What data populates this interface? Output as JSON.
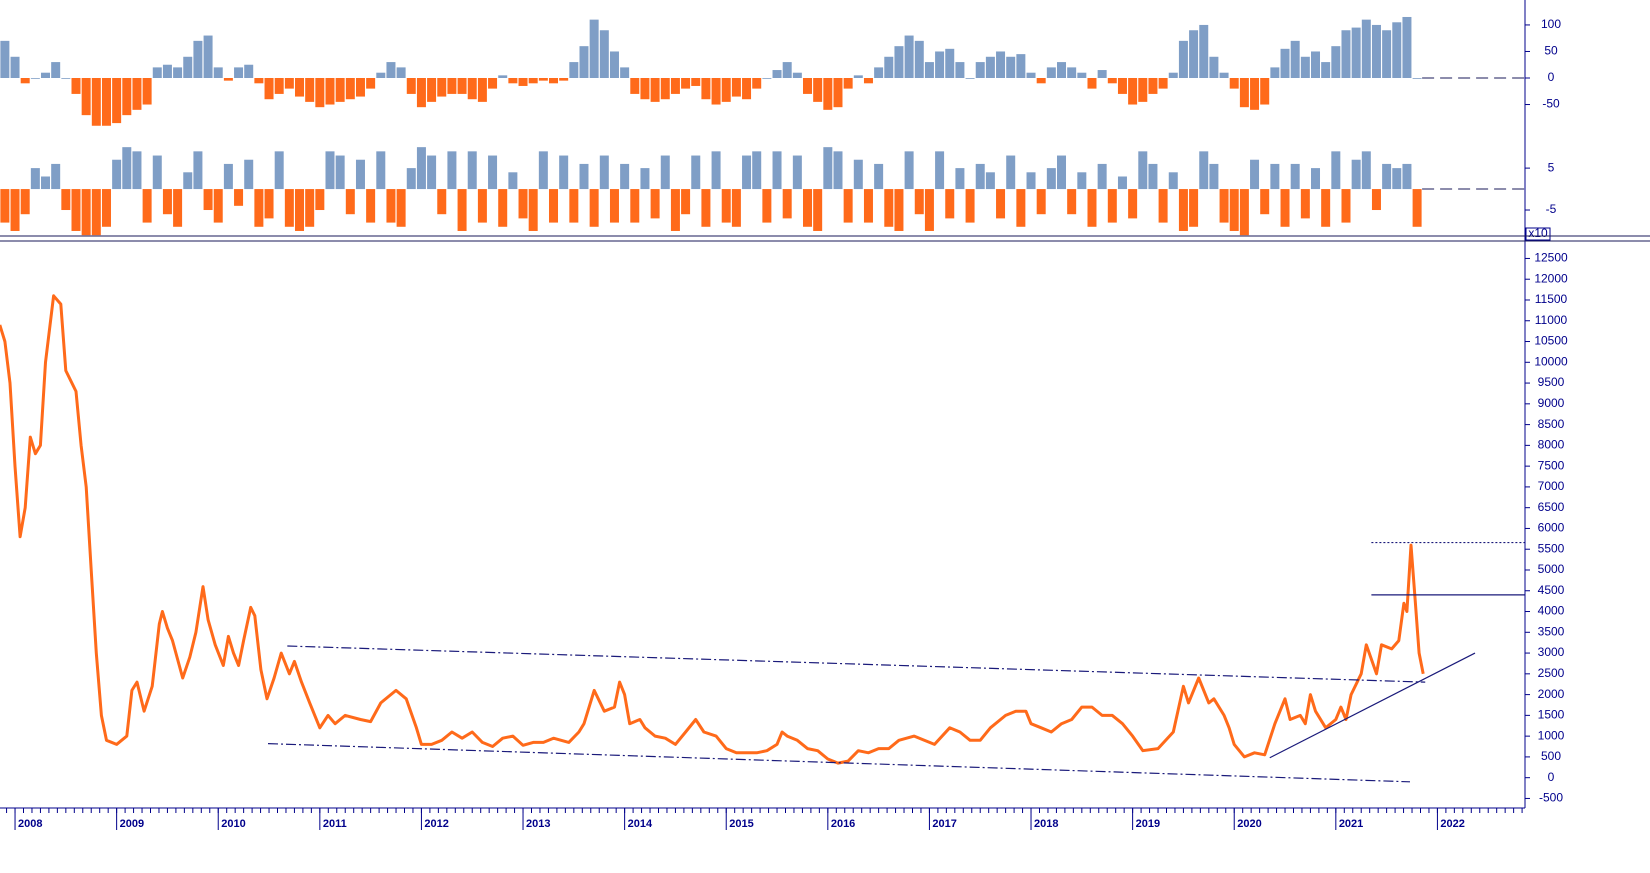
{
  "chart_data": [
    {
      "type": "bar",
      "x": [
        2007.9,
        2008,
        2008.1,
        2008.2,
        2008.3,
        2008.4,
        2008.5,
        2008.6,
        2008.7,
        2008.8,
        2008.9,
        2009,
        2009.1,
        2009.2,
        2009.3,
        2009.4,
        2009.5,
        2009.6,
        2009.7,
        2009.8,
        2009.9,
        2010,
        2010.1,
        2010.2,
        2010.3,
        2010.4,
        2010.5,
        2010.6,
        2010.7,
        2010.8,
        2010.9,
        2011,
        2011.1,
        2011.2,
        2011.3,
        2011.4,
        2011.5,
        2011.6,
        2011.7,
        2011.8,
        2011.9,
        2012,
        2012.1,
        2012.2,
        2012.3,
        2012.4,
        2012.5,
        2012.6,
        2012.7,
        2012.8,
        2012.9,
        2013,
        2013.1,
        2013.2,
        2013.3,
        2013.4,
        2013.5,
        2013.6,
        2013.7,
        2013.8,
        2013.9,
        2014,
        2014.1,
        2014.2,
        2014.3,
        2014.4,
        2014.5,
        2014.6,
        2014.7,
        2014.8,
        2014.9,
        2015,
        2015.1,
        2015.2,
        2015.3,
        2015.4,
        2015.5,
        2015.6,
        2015.7,
        2015.8,
        2015.9,
        2016,
        2016.1,
        2016.2,
        2016.3,
        2016.4,
        2016.5,
        2016.6,
        2016.7,
        2016.8,
        2016.9,
        2017,
        2017.1,
        2017.2,
        2017.3,
        2017.4,
        2017.5,
        2017.6,
        2017.7,
        2017.8,
        2017.9,
        2018,
        2018.1,
        2018.2,
        2018.3,
        2018.4,
        2018.5,
        2018.6,
        2018.7,
        2018.8,
        2018.9,
        2019,
        2019.1,
        2019.2,
        2019.3,
        2019.4,
        2019.5,
        2019.6,
        2019.7,
        2019.8,
        2019.9,
        2020,
        2020.1,
        2020.2,
        2020.3,
        2020.4,
        2020.5,
        2020.6,
        2020.7,
        2020.8,
        2020.9,
        2021,
        2021.1,
        2021.2,
        2021.3,
        2021.4,
        2021.5,
        2021.6,
        2021.7,
        2021.8
      ],
      "values": [
        70,
        40,
        -10,
        0,
        10,
        30,
        0,
        -30,
        -70,
        -90,
        -90,
        -85,
        -70,
        -60,
        -50,
        20,
        25,
        20,
        40,
        70,
        80,
        20,
        -5,
        20,
        25,
        -10,
        -40,
        -30,
        -20,
        -35,
        -45,
        -55,
        -50,
        -45,
        -40,
        -35,
        -20,
        10,
        30,
        20,
        -30,
        -55,
        -45,
        -35,
        -30,
        -30,
        -40,
        -45,
        -20,
        5,
        -10,
        -15,
        -10,
        -5,
        -10,
        -5,
        30,
        60,
        110,
        90,
        50,
        20,
        -30,
        -40,
        -45,
        -40,
        -30,
        -20,
        -15,
        -40,
        -50,
        -45,
        -35,
        -40,
        -20,
        0,
        15,
        30,
        10,
        -30,
        -45,
        -60,
        -55,
        -20,
        5,
        -10,
        20,
        40,
        60,
        80,
        70,
        30,
        50,
        55,
        30,
        0,
        30,
        40,
        50,
        40,
        45,
        10,
        -10,
        20,
        30,
        20,
        10,
        -20,
        15,
        -10,
        -30,
        -50,
        -45,
        -30,
        -20,
        10,
        70,
        90,
        100,
        40,
        10,
        -20,
        -55,
        -60,
        -50,
        20,
        55,
        70,
        40,
        50,
        30,
        60,
        90,
        95,
        110,
        100,
        90,
        105,
        115,
        0
      ],
      "positive_color": "#7f9ec6",
      "negative_color": "#ff6a1a",
      "xlim": [
        2007.852,
        2022.862
      ],
      "ylim": [
        -98,
        147
      ],
      "yticks": [
        100,
        50,
        0,
        -50
      ]
    },
    {
      "type": "bar",
      "x": [
        2007.9,
        2008,
        2008.1,
        2008.2,
        2008.3,
        2008.4,
        2008.5,
        2008.6,
        2008.7,
        2008.8,
        2008.9,
        2009,
        2009.1,
        2009.2,
        2009.3,
        2009.4,
        2009.5,
        2009.6,
        2009.7,
        2009.8,
        2009.9,
        2010,
        2010.1,
        2010.2,
        2010.3,
        2010.4,
        2010.5,
        2010.6,
        2010.7,
        2010.8,
        2010.9,
        2011,
        2011.1,
        2011.2,
        2011.3,
        2011.4,
        2011.5,
        2011.6,
        2011.7,
        2011.8,
        2011.9,
        2012,
        2012.1,
        2012.2,
        2012.3,
        2012.4,
        2012.5,
        2012.6,
        2012.7,
        2012.8,
        2012.9,
        2013,
        2013.1,
        2013.2,
        2013.3,
        2013.4,
        2013.5,
        2013.6,
        2013.7,
        2013.8,
        2013.9,
        2014,
        2014.1,
        2014.2,
        2014.3,
        2014.4,
        2014.5,
        2014.6,
        2014.7,
        2014.8,
        2014.9,
        2015,
        2015.1,
        2015.2,
        2015.3,
        2015.4,
        2015.5,
        2015.6,
        2015.7,
        2015.8,
        2015.9,
        2016,
        2016.1,
        2016.2,
        2016.3,
        2016.4,
        2016.5,
        2016.6,
        2016.7,
        2016.8,
        2016.9,
        2017,
        2017.1,
        2017.2,
        2017.3,
        2017.4,
        2017.5,
        2017.6,
        2017.7,
        2017.8,
        2017.9,
        2018,
        2018.1,
        2018.2,
        2018.3,
        2018.4,
        2018.5,
        2018.6,
        2018.7,
        2018.8,
        2018.9,
        2019,
        2019.1,
        2019.2,
        2019.3,
        2019.4,
        2019.5,
        2019.6,
        2019.7,
        2019.8,
        2019.9,
        2020,
        2020.1,
        2020.2,
        2020.3,
        2020.4,
        2020.5,
        2020.6,
        2020.7,
        2020.8,
        2020.9,
        2021,
        2021.1,
        2021.2,
        2021.3,
        2021.4,
        2021.5,
        2021.6,
        2021.7,
        2021.8
      ],
      "values": [
        -8,
        -10,
        -6,
        5,
        3,
        6,
        -5,
        -10,
        -11,
        -11,
        -9,
        7,
        10,
        9,
        -8,
        8,
        -6,
        -9,
        4,
        9,
        -5,
        -8,
        6,
        -4,
        7,
        -9,
        -7,
        9,
        -9,
        -10,
        -9,
        -5,
        9,
        8,
        -6,
        7,
        -8,
        9,
        -8,
        -9,
        5,
        10,
        8,
        -6,
        9,
        -10,
        9,
        -8,
        8,
        -9,
        4,
        -7,
        -10,
        9,
        -8,
        8,
        -8,
        6,
        -9,
        8,
        -8,
        6,
        -8,
        5,
        -7,
        8,
        -10,
        -6,
        8,
        -9,
        9,
        -8,
        -9,
        8,
        9,
        -8,
        9,
        -7,
        8,
        -9,
        -10,
        10,
        9,
        -8,
        7,
        -8,
        6,
        -9,
        -10,
        9,
        -6,
        -10,
        9,
        -7,
        5,
        -8,
        6,
        4,
        -7,
        8,
        -9,
        4,
        -6,
        5,
        8,
        -6,
        4,
        -9,
        6,
        -8,
        3,
        -7,
        9,
        6,
        -8,
        4,
        -10,
        -9,
        9,
        6,
        -8,
        -10,
        -11,
        7,
        -6,
        6,
        -9,
        6,
        -7,
        5,
        -9,
        9,
        -8,
        7,
        9,
        -5,
        6,
        5,
        6,
        -9
      ],
      "positive_color": "#7f9ec6",
      "negative_color": "#ff6a1a",
      "xlim": [
        2007.852,
        2022.862
      ],
      "ylim": [
        -11.2,
        12.9
      ],
      "yticks": [
        5,
        -5
      ],
      "axis_label": "x10"
    },
    {
      "type": "line",
      "x": [
        2007.85,
        2007.9,
        2007.95,
        2008,
        2008.05,
        2008.1,
        2008.15,
        2008.2,
        2008.25,
        2008.3,
        2008.38,
        2008.45,
        2008.5,
        2008.6,
        2008.65,
        2008.7,
        2008.75,
        2008.8,
        2008.85,
        2008.9,
        2009,
        2009.1,
        2009.15,
        2009.2,
        2009.27,
        2009.35,
        2009.42,
        2009.45,
        2009.5,
        2009.55,
        2009.65,
        2009.72,
        2009.78,
        2009.85,
        2009.9,
        2009.97,
        2010.05,
        2010.1,
        2010.15,
        2010.2,
        2010.25,
        2010.32,
        2010.36,
        2010.42,
        2010.48,
        2010.55,
        2010.62,
        2010.7,
        2010.75,
        2010.82,
        2010.9,
        2011,
        2011.08,
        2011.15,
        2011.25,
        2011.4,
        2011.5,
        2011.6,
        2011.75,
        2011.85,
        2011.95,
        2012,
        2012.1,
        2012.2,
        2012.3,
        2012.4,
        2012.5,
        2012.6,
        2012.7,
        2012.8,
        2012.9,
        2013,
        2013.1,
        2013.2,
        2013.3,
        2013.45,
        2013.55,
        2013.6,
        2013.7,
        2013.8,
        2013.9,
        2013.95,
        2014,
        2014.05,
        2014.15,
        2014.2,
        2014.3,
        2014.4,
        2014.5,
        2014.6,
        2014.7,
        2014.78,
        2014.9,
        2015,
        2015.1,
        2015.3,
        2015.4,
        2015.5,
        2015.55,
        2015.6,
        2015.7,
        2015.8,
        2015.9,
        2016,
        2016.1,
        2016.2,
        2016.3,
        2016.4,
        2016.5,
        2016.6,
        2016.7,
        2016.85,
        2016.95,
        2017.05,
        2017.2,
        2017.3,
        2017.4,
        2017.5,
        2017.6,
        2017.75,
        2017.85,
        2017.95,
        2018,
        2018.1,
        2018.2,
        2018.3,
        2018.4,
        2018.5,
        2018.6,
        2018.7,
        2018.8,
        2018.9,
        2019,
        2019.1,
        2019.25,
        2019.4,
        2019.5,
        2019.55,
        2019.65,
        2019.75,
        2019.8,
        2019.9,
        2019.95,
        2020,
        2020.1,
        2020.2,
        2020.3,
        2020.4,
        2020.5,
        2020.55,
        2020.65,
        2020.7,
        2020.75,
        2020.8,
        2020.9,
        2021,
        2021.05,
        2021.1,
        2021.15,
        2021.25,
        2021.3,
        2021.4,
        2021.45,
        2021.55,
        2021.62,
        2021.67,
        2021.7,
        2021.74,
        2021.78,
        2021.82,
        2021.86
      ],
      "values": [
        10900,
        10500,
        9500,
        7500,
        5800,
        6500,
        8200,
        7800,
        8000,
        10000,
        11600,
        11400,
        9800,
        9300,
        8000,
        7000,
        5000,
        3000,
        1500,
        900,
        800,
        1000,
        2100,
        2300,
        1600,
        2200,
        3700,
        4000,
        3600,
        3300,
        2400,
        2900,
        3500,
        4600,
        3800,
        3200,
        2700,
        3400,
        3000,
        2700,
        3300,
        4100,
        3900,
        2600,
        1900,
        2400,
        3000,
        2500,
        2800,
        2300,
        1800,
        1200,
        1500,
        1300,
        1500,
        1400,
        1350,
        1800,
        2100,
        1900,
        1200,
        800,
        800,
        900,
        1100,
        950,
        1100,
        850,
        750,
        950,
        1000,
        780,
        850,
        850,
        950,
        850,
        1100,
        1300,
        2100,
        1600,
        1700,
        2300,
        2000,
        1300,
        1400,
        1200,
        1000,
        950,
        800,
        1100,
        1400,
        1100,
        1000,
        700,
        600,
        600,
        650,
        800,
        1100,
        1000,
        900,
        700,
        650,
        450,
        350,
        400,
        650,
        600,
        700,
        700,
        900,
        1000,
        900,
        800,
        1200,
        1100,
        900,
        900,
        1200,
        1500,
        1600,
        1600,
        1300,
        1200,
        1100,
        1300,
        1400,
        1700,
        1700,
        1500,
        1500,
        1300,
        1000,
        650,
        700,
        1100,
        2200,
        1800,
        2400,
        1800,
        1900,
        1500,
        1200,
        800,
        500,
        600,
        550,
        1300,
        1900,
        1400,
        1500,
        1300,
        2000,
        1600,
        1200,
        1400,
        1700,
        1400,
        2000,
        2500,
        3200,
        2500,
        3200,
        3100,
        3300,
        4200,
        4000,
        5600,
        4300,
        3000,
        2500
      ],
      "color": "#ff6a1a",
      "xlim": [
        2007.852,
        2022.862
      ],
      "ylim": [
        -730,
        12920
      ],
      "xticks": [
        2008,
        2009,
        2010,
        2011,
        2012,
        2013,
        2014,
        2015,
        2016,
        2017,
        2018,
        2019,
        2020,
        2021,
        2022
      ],
      "yticks": [
        12500,
        12000,
        11500,
        11000,
        10500,
        10000,
        9500,
        9000,
        8500,
        8000,
        7500,
        7000,
        6500,
        6000,
        5500,
        5000,
        4500,
        4000,
        3500,
        3000,
        2500,
        2000,
        1500,
        1000,
        500,
        0,
        -500
      ],
      "trendlines": [
        {
          "x": [
            2010.68,
            2021.88
          ],
          "y": [
            3170,
            2300
          ],
          "style": "dashdot"
        },
        {
          "x": [
            2010.49,
            2021.73
          ],
          "y": [
            820,
            -100
          ],
          "style": "dashdot"
        },
        {
          "x": [
            2020.35,
            2022.37
          ],
          "y": [
            480,
            3000
          ],
          "style": "solid"
        },
        {
          "x": [
            2021.35,
            2022.862
          ],
          "y": [
            4400,
            4400
          ],
          "style": "solid"
        },
        {
          "x": [
            2021.35,
            2022.862
          ],
          "y": [
            5660,
            5660
          ],
          "style": "dotted"
        }
      ]
    }
  ]
}
